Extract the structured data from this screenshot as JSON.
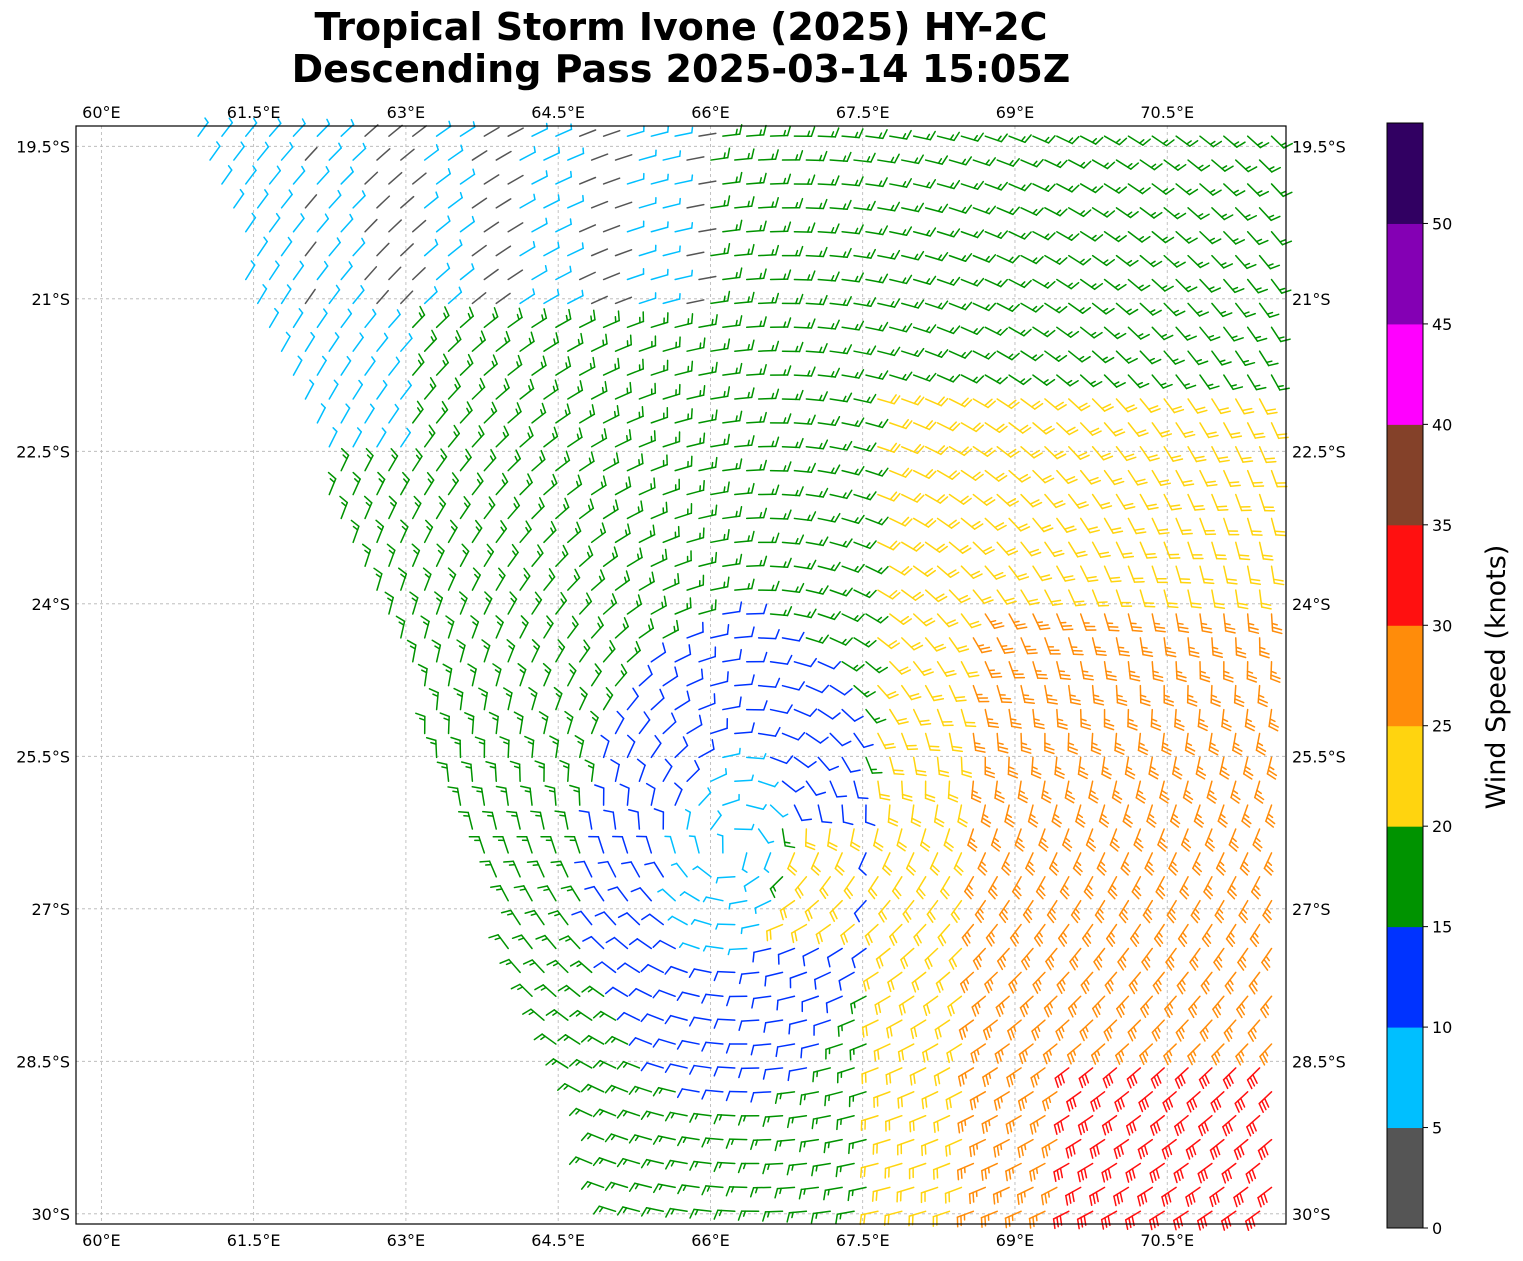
{
  "title": {
    "line1": "Tropical Storm Ivone (2025) HY-2C",
    "line2": "Descending Pass 2025-03-14 15:05Z"
  },
  "map": {
    "lon_range": [
      59.75,
      71.67
    ],
    "lat_range": [
      -30.1,
      -19.3
    ],
    "lon_ticks": [
      "60°E",
      "61.5°E",
      "63°E",
      "64.5°E",
      "66°E",
      "67.5°E",
      "69°E",
      "70.5°E"
    ],
    "lat_ticks": [
      "19.5°S",
      "21°S",
      "22.5°S",
      "24°S",
      "25.5°S",
      "27°S",
      "28.5°S",
      "30°S"
    ],
    "gridlines": true,
    "storm_center": {
      "lon": 66.2,
      "lat": -26.5
    }
  },
  "colorbar": {
    "label": "Wind Speed (knots)",
    "tick_labels": [
      "0",
      "5",
      "10",
      "15",
      "20",
      "25",
      "30",
      "35",
      "40",
      "45",
      "50"
    ],
    "bins": [
      {
        "range": [
          0,
          5
        ],
        "color": "#555555"
      },
      {
        "range": [
          5,
          10
        ],
        "color": "#00BFFF"
      },
      {
        "range": [
          10,
          15
        ],
        "color": "#0033FF"
      },
      {
        "range": [
          15,
          20
        ],
        "color": "#009300"
      },
      {
        "range": [
          20,
          25
        ],
        "color": "#FFD40F"
      },
      {
        "range": [
          25,
          30
        ],
        "color": "#FF8C0A"
      },
      {
        "range": [
          30,
          35
        ],
        "color": "#FF1010"
      },
      {
        "range": [
          35,
          40
        ],
        "color": "#844129"
      },
      {
        "range": [
          40,
          45
        ],
        "color": "#FF00FF"
      },
      {
        "range": [
          45,
          50
        ],
        "color": "#8400B4"
      },
      {
        "range": [
          50,
          55
        ],
        "color": "#310062"
      }
    ]
  }
}
